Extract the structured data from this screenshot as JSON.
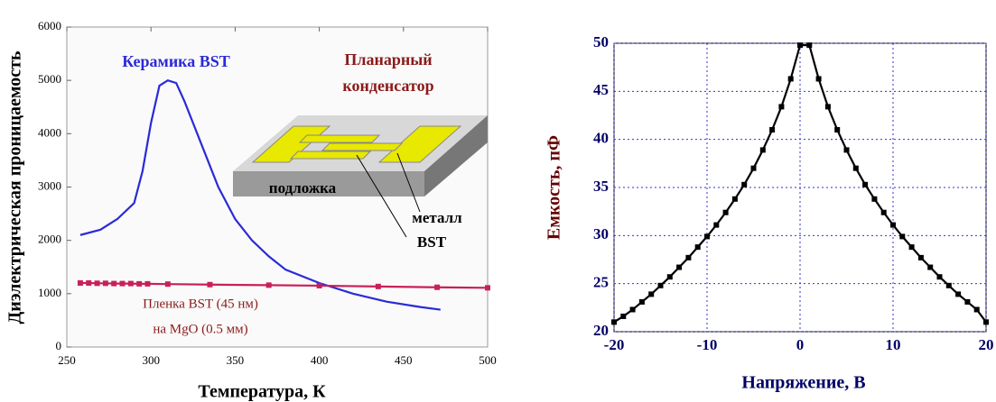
{
  "chart_data": [
    {
      "type": "line",
      "xlabel": "Температура, К",
      "ylabel": "Диэлектрическая проницаемость",
      "xlim": [
        250,
        500
      ],
      "xticks": [
        250,
        300,
        350,
        400,
        450,
        500
      ],
      "ylim": [
        0,
        6000
      ],
      "yticks": [
        0,
        1000,
        2000,
        3000,
        4000,
        5000,
        6000
      ],
      "grid": false,
      "series": [
        {
          "name": "Керамика BST",
          "color": "#2a2ad8",
          "markers": false,
          "x": [
            258,
            270,
            280,
            290,
            295,
            300,
            305,
            310,
            315,
            320,
            330,
            340,
            350,
            360,
            370,
            380,
            400,
            420,
            440,
            460,
            472
          ],
          "values": [
            2100,
            2200,
            2400,
            2700,
            3300,
            4200,
            4900,
            5000,
            4950,
            4600,
            3800,
            3000,
            2400,
            2000,
            1700,
            1450,
            1200,
            1000,
            850,
            750,
            700
          ]
        },
        {
          "name": "Пленка BST (45 нм)",
          "color": "#c8205a",
          "markers": true,
          "x": [
            258,
            263,
            268,
            273,
            278,
            283,
            288,
            293,
            298,
            310,
            335,
            370,
            400,
            435,
            470,
            500
          ],
          "values": [
            1200,
            1200,
            1195,
            1195,
            1190,
            1190,
            1190,
            1185,
            1185,
            1180,
            1170,
            1160,
            1150,
            1135,
            1120,
            1110
          ]
        }
      ],
      "annotations": [
        {
          "text": "Керамика BST",
          "color": "#2a2ad8"
        },
        {
          "text": "Планарный",
          "color": "#8b1a1a"
        },
        {
          "text": "конденсатор",
          "color": "#8b1a1a"
        },
        {
          "text": "на MgO (0.5 мм)",
          "color": "#8b1a1a"
        },
        {
          "text": "подложка",
          "color": "#000000"
        },
        {
          "text": "металл",
          "color": "#000000"
        },
        {
          "text": "BST",
          "color": "#000000"
        }
      ]
    },
    {
      "type": "line",
      "xlabel": "Напряжение, В",
      "ylabel": "Емкость, пФ",
      "xlim": [
        -20,
        20
      ],
      "xticks": [
        -20,
        -10,
        0,
        10,
        20
      ],
      "ylim": [
        20,
        50
      ],
      "yticks": [
        20,
        25,
        30,
        35,
        40,
        45,
        50
      ],
      "grid": true,
      "series": [
        {
          "name": "",
          "color": "#000000",
          "markers": true,
          "x": [
            -20,
            -19,
            -18,
            -17,
            -16,
            -15,
            -14,
            -13,
            -12,
            -11,
            -10,
            -9,
            -8,
            -7,
            -6,
            -5,
            -4,
            -3,
            -2,
            -1,
            0,
            1,
            2,
            3,
            4,
            5,
            6,
            7,
            8,
            9,
            10,
            11,
            12,
            13,
            14,
            15,
            16,
            17,
            18,
            19,
            20
          ],
          "values": [
            21.0,
            21.6,
            22.3,
            23.1,
            23.9,
            24.8,
            25.7,
            26.7,
            27.7,
            28.8,
            29.9,
            31.1,
            32.4,
            33.8,
            35.3,
            37.0,
            38.9,
            41.0,
            43.4,
            46.3,
            49.8,
            49.8,
            46.3,
            43.4,
            41.0,
            38.9,
            37.0,
            35.3,
            33.8,
            32.4,
            31.1,
            29.9,
            28.8,
            27.7,
            26.7,
            25.7,
            24.8,
            23.9,
            23.1,
            22.3,
            21.0
          ]
        }
      ]
    }
  ]
}
